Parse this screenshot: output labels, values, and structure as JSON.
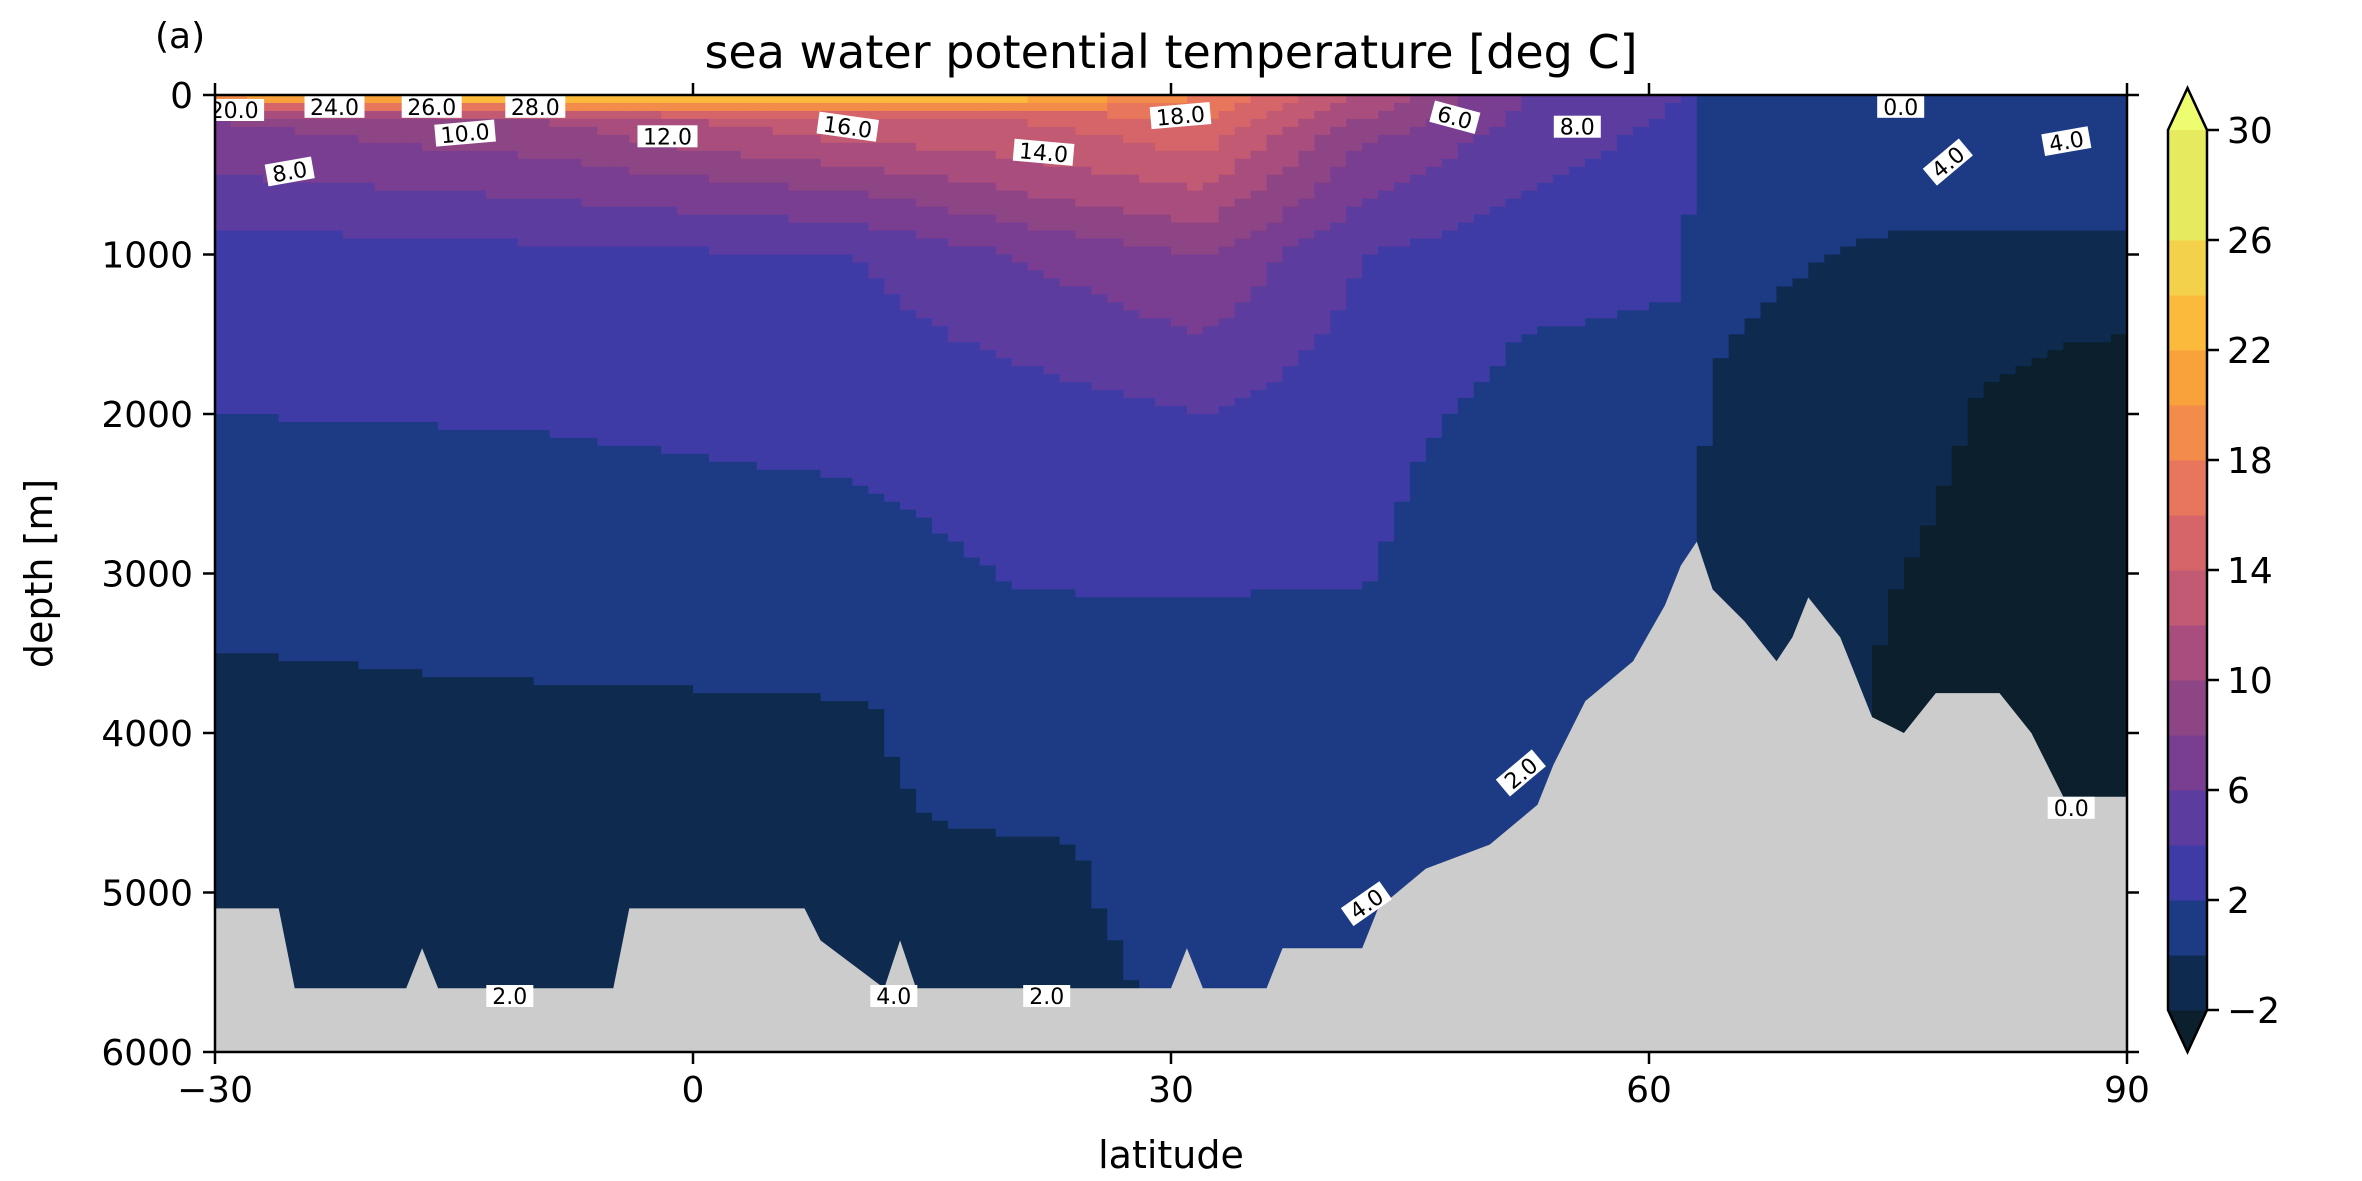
{
  "chart_data": {
    "type": "heatmap",
    "panel_label": "(a)",
    "title": "sea water potential temperature [deg C]",
    "xlabel": "latitude",
    "ylabel": "depth [m]",
    "xlim": [
      -30,
      90
    ],
    "ylim": [
      6000,
      0
    ],
    "xticks": [
      -30,
      0,
      30,
      60,
      90
    ],
    "xtick_labels": [
      "−30",
      "0",
      "30",
      "60",
      "90"
    ],
    "yticks": [
      0,
      1000,
      2000,
      3000,
      4000,
      5000,
      6000
    ],
    "ytick_labels": [
      "0",
      "1000",
      "2000",
      "3000",
      "4000",
      "5000",
      "6000"
    ],
    "colorbar": {
      "levels": [
        -2,
        0,
        2,
        4,
        6,
        8,
        10,
        12,
        14,
        16,
        18,
        20,
        22,
        24,
        26,
        28,
        30
      ],
      "colors": [
        "#0b1f2c",
        "#0e2a4f",
        "#1d3a85",
        "#3f3ba6",
        "#5c3c9e",
        "#793e91",
        "#8e4585",
        "#a84d7d",
        "#c15a72",
        "#d6656a",
        "#e8765c",
        "#f38b4a",
        "#f9a23c",
        "#fbba3b",
        "#f4d14b",
        "#e6ea5e",
        "#eefc6f"
      ],
      "extend": "both",
      "tick_values": [
        -2,
        2,
        6,
        10,
        14,
        18,
        22,
        26,
        30
      ],
      "tick_labels": [
        "−2",
        "2",
        "6",
        "10",
        "14",
        "18",
        "22",
        "26",
        "30"
      ]
    },
    "sections": [
      {
        "lat": -30,
        "temp_profile": [
          [
            0,
            24
          ],
          [
            150,
            10
          ],
          [
            500,
            8
          ],
          [
            1000,
            5
          ],
          [
            2000,
            4
          ],
          [
            3400,
            2.5
          ],
          [
            3600,
            1.5
          ],
          [
            6000,
            1.2
          ]
        ]
      },
      {
        "lat": -10,
        "temp_profile": [
          [
            0,
            28
          ],
          [
            150,
            12
          ],
          [
            500,
            9
          ],
          [
            1000,
            5.5
          ],
          [
            2100,
            4
          ],
          [
            3600,
            2.4
          ],
          [
            3750,
            1.6
          ],
          [
            6000,
            1.3
          ]
        ]
      },
      {
        "lat": 10,
        "temp_profile": [
          [
            0,
            28
          ],
          [
            150,
            16
          ],
          [
            600,
            10
          ],
          [
            1000,
            6
          ],
          [
            2000,
            4.5
          ],
          [
            3700,
            2.4
          ],
          [
            3850,
            1.7
          ],
          [
            6000,
            1.4
          ]
        ]
      },
      {
        "lat": 20,
        "temp_profile": [
          [
            0,
            26
          ],
          [
            150,
            16
          ],
          [
            500,
            13
          ],
          [
            1000,
            8
          ],
          [
            2000,
            5
          ],
          [
            4000,
            3.2
          ],
          [
            4500,
            2.5
          ],
          [
            4700,
            1.8
          ],
          [
            6000,
            1.6
          ]
        ]
      },
      {
        "lat": 32,
        "temp_profile": [
          [
            0,
            20
          ],
          [
            150,
            18
          ],
          [
            600,
            14
          ],
          [
            1000,
            10
          ],
          [
            2000,
            6
          ],
          [
            3000,
            4.2
          ],
          [
            4200,
            2.5
          ],
          [
            6000,
            2.1
          ]
        ]
      },
      {
        "lat": 42,
        "temp_profile": [
          [
            0,
            14
          ],
          [
            300,
            10
          ],
          [
            1000,
            6
          ],
          [
            2000,
            4.6
          ],
          [
            3000,
            4.1
          ],
          [
            4500,
            2.3
          ],
          [
            6000,
            2.2
          ]
        ]
      },
      {
        "lat": 52,
        "temp_profile": [
          [
            0,
            8
          ],
          [
            600,
            6
          ],
          [
            1300,
            4.2
          ],
          [
            2500,
            3
          ],
          [
            4500,
            2.2
          ],
          [
            6000,
            2.2
          ]
        ]
      },
      {
        "lat": 62,
        "temp_profile": [
          [
            0,
            6
          ],
          [
            700,
            4.5
          ],
          [
            1500,
            3.8
          ],
          [
            2800,
            2.5
          ],
          [
            4500,
            1.5
          ],
          [
            6000,
            1.5
          ]
        ]
      },
      {
        "lat": 64,
        "temp_profile": [
          [
            0,
            3
          ],
          [
            1000,
            2.6
          ],
          [
            2000,
            1.8
          ],
          [
            3000,
            0.8
          ],
          [
            6000,
            0.5
          ]
        ]
      },
      {
        "lat": 75,
        "temp_profile": [
          [
            0,
            3.5
          ],
          [
            600,
            2.5
          ],
          [
            1300,
            1.2
          ],
          [
            1800,
            0.2
          ],
          [
            6000,
            -0.4
          ]
        ]
      },
      {
        "lat": 90,
        "temp_profile": [
          [
            0,
            3
          ],
          [
            1000,
            1.8
          ],
          [
            1300,
            0.6
          ],
          [
            1600,
            -0.3
          ],
          [
            6000,
            -0.6
          ]
        ]
      }
    ],
    "bathymetry": [
      [
        -30,
        5100
      ],
      [
        -26,
        5100
      ],
      [
        -25,
        5600
      ],
      [
        -18,
        5600
      ],
      [
        -17,
        5350
      ],
      [
        -16,
        5600
      ],
      [
        -5,
        5600
      ],
      [
        -4,
        5100
      ],
      [
        7,
        5100
      ],
      [
        8,
        5300
      ],
      [
        12,
        5600
      ],
      [
        13,
        5300
      ],
      [
        14,
        5600
      ],
      [
        20,
        5600
      ],
      [
        30,
        5600
      ],
      [
        31,
        5350
      ],
      [
        32,
        5600
      ],
      [
        36,
        5600
      ],
      [
        37,
        5350
      ],
      [
        42,
        5350
      ],
      [
        43,
        5100
      ],
      [
        46,
        4850
      ],
      [
        50,
        4700
      ],
      [
        53,
        4450
      ],
      [
        54,
        4200
      ],
      [
        56,
        3800
      ],
      [
        59,
        3550
      ],
      [
        61,
        3200
      ],
      [
        62,
        2950
      ],
      [
        63,
        2800
      ],
      [
        64,
        3100
      ],
      [
        66,
        3300
      ],
      [
        68,
        3550
      ],
      [
        69,
        3400
      ],
      [
        70,
        3150
      ],
      [
        72,
        3400
      ],
      [
        74,
        3900
      ],
      [
        76,
        4000
      ],
      [
        78,
        3750
      ],
      [
        82,
        3750
      ],
      [
        84,
        4000
      ],
      [
        86,
        4400
      ],
      [
        90,
        4400
      ]
    ],
    "contour_labels": [
      {
        "text": "20.0",
        "lat": -28.8,
        "depth": 25,
        "rotation": 0
      },
      {
        "text": "24.0",
        "lat": -22.5,
        "depth": 5,
        "rotation": 0
      },
      {
        "text": "26.0",
        "lat": -16.4,
        "depth": 5,
        "rotation": 0
      },
      {
        "text": "28.0",
        "lat": -9.9,
        "depth": 5,
        "rotation": 0
      },
      {
        "text": "10.0",
        "lat": -14.3,
        "depth": 170,
        "rotation": -5
      },
      {
        "text": "8.0",
        "lat": -25.3,
        "depth": 410,
        "rotation": -10
      },
      {
        "text": "12.0",
        "lat": -1.6,
        "depth": 190,
        "rotation": 0
      },
      {
        "text": "16.0",
        "lat": 9.7,
        "depth": 130,
        "rotation": 8
      },
      {
        "text": "14.0",
        "lat": 22.0,
        "depth": 290,
        "rotation": 5
      },
      {
        "text": "18.0",
        "lat": 30.6,
        "depth": 60,
        "rotation": -5
      },
      {
        "text": "6.0",
        "lat": 47.8,
        "depth": 70,
        "rotation": 15
      },
      {
        "text": "8.0",
        "lat": 55.5,
        "depth": 130,
        "rotation": 0
      },
      {
        "text": "0.0",
        "lat": 75.8,
        "depth": 5,
        "rotation": 0
      },
      {
        "text": "4.0",
        "lat": 78.8,
        "depth": 350,
        "rotation": -40
      },
      {
        "text": "4.0",
        "lat": 86.2,
        "depth": 220,
        "rotation": -10
      },
      {
        "text": "2.0",
        "lat": 52.0,
        "depth": 4180,
        "rotation": -40
      },
      {
        "text": "4.0",
        "lat": 42.3,
        "depth": 5000,
        "rotation": -35
      },
      {
        "text": "0.0",
        "lat": 86.5,
        "depth": 4400,
        "rotation": 0
      },
      {
        "text": "2.0",
        "lat": -11.5,
        "depth": 5580,
        "rotation": 0
      },
      {
        "text": "4.0",
        "lat": 12.6,
        "depth": 5580,
        "rotation": 0
      },
      {
        "text": "2.0",
        "lat": 22.2,
        "depth": 5580,
        "rotation": 0
      }
    ],
    "colors": {
      "land": "#cccccc",
      "axes": "#000000"
    }
  }
}
